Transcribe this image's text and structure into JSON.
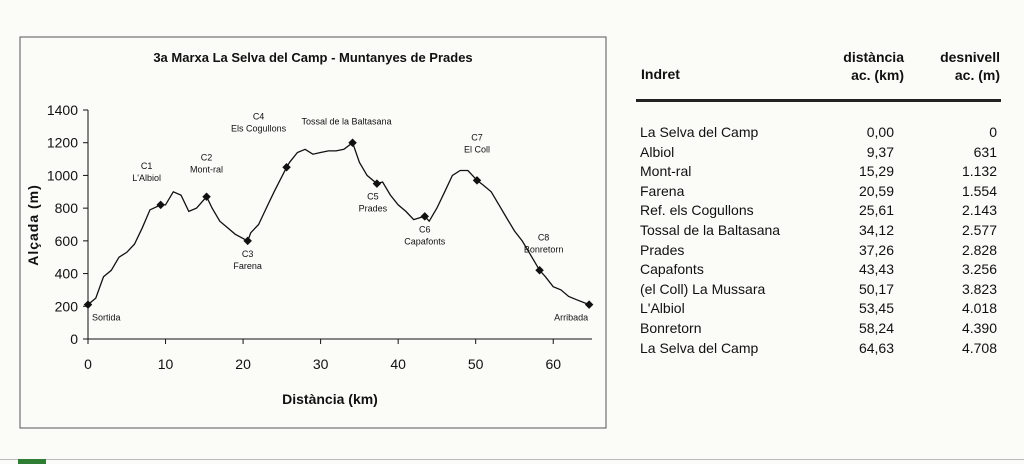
{
  "chart_data": {
    "type": "line",
    "title": "3a Marxa La Selva del Camp - Muntanyes de Prades",
    "xlabel": "Distància (km)",
    "ylabel": "Alçada (m)",
    "xlim": [
      0,
      65
    ],
    "ylim": [
      0,
      1400
    ],
    "xticks": [
      0,
      10,
      20,
      30,
      40,
      50,
      60
    ],
    "yticks": [
      0,
      200,
      400,
      600,
      800,
      1000,
      1200,
      1400
    ],
    "x": [
      0,
      1,
      2,
      3,
      4,
      5,
      6,
      7,
      8,
      9.37,
      10,
      11,
      12,
      13,
      14,
      15.29,
      16,
      17,
      18,
      19,
      20.59,
      21,
      22,
      23,
      24,
      25.61,
      26,
      27,
      28,
      29,
      30,
      31,
      32,
      33,
      34.12,
      35,
      36,
      37.26,
      38,
      39,
      40,
      41,
      42,
      43.43,
      44,
      45,
      46,
      47,
      48,
      49,
      50.17,
      51,
      52,
      53,
      54,
      55,
      56,
      57,
      58.24,
      59,
      60,
      61,
      62,
      63,
      64.63
    ],
    "series": [
      {
        "color": "#111111",
        "values": [
          210,
          250,
          380,
          420,
          500,
          530,
          580,
          680,
          790,
          820,
          820,
          900,
          880,
          780,
          800,
          870,
          800,
          720,
          680,
          640,
          600,
          650,
          700,
          800,
          900,
          1050,
          1080,
          1140,
          1160,
          1130,
          1140,
          1150,
          1150,
          1160,
          1200,
          1080,
          1000,
          950,
          960,
          880,
          820,
          780,
          730,
          750,
          720,
          800,
          900,
          1000,
          1030,
          1030,
          970,
          940,
          900,
          820,
          740,
          660,
          600,
          520,
          420,
          380,
          320,
          300,
          260,
          240,
          210
        ]
      }
    ],
    "checkpoints": [
      {
        "x": 0,
        "y": 210,
        "lines": [
          "Sortida"
        ]
      },
      {
        "x": 9.37,
        "y": 820,
        "lines": [
          "C1",
          "L'Albiol"
        ]
      },
      {
        "x": 15.29,
        "y": 870,
        "lines": [
          "C2",
          "Mont-ral"
        ]
      },
      {
        "x": 20.59,
        "y": 600,
        "lines": [
          "C3",
          "Farena"
        ]
      },
      {
        "x": 25.61,
        "y": 1050,
        "lines": [
          "C4",
          "Els Cogullons"
        ]
      },
      {
        "x": 34.12,
        "y": 1200,
        "lines": [
          "Tossal de la Baltasana"
        ]
      },
      {
        "x": 37.26,
        "y": 950,
        "lines": [
          "C5",
          "Prades"
        ]
      },
      {
        "x": 43.43,
        "y": 750,
        "lines": [
          "C6",
          "Capafonts"
        ]
      },
      {
        "x": 50.17,
        "y": 970,
        "lines": [
          "C7",
          "El Coll"
        ]
      },
      {
        "x": 58.24,
        "y": 420,
        "lines": [
          "C8",
          "Bonretorn"
        ]
      },
      {
        "x": 64.63,
        "y": 210,
        "lines": [
          "Arribada"
        ]
      }
    ]
  },
  "table": {
    "header": [
      "Indret",
      [
        "distància",
        "ac. (km)"
      ],
      [
        "desnivell",
        "ac. (m)"
      ]
    ],
    "rows": [
      [
        "La Selva del Camp",
        "0,00",
        "0"
      ],
      [
        "Albiol",
        "9,37",
        "631"
      ],
      [
        "Mont-ral",
        "15,29",
        "1.132"
      ],
      [
        "Farena",
        "20,59",
        "1.554"
      ],
      [
        "Ref. els Cogullons",
        "25,61",
        "2.143"
      ],
      [
        "Tossal de la Baltasana",
        "34,12",
        "2.577"
      ],
      [
        "Prades",
        "37,26",
        "2.828"
      ],
      [
        "Capafonts",
        "43,43",
        "3.256"
      ],
      [
        "(el Coll) La Mussara",
        "50,17",
        "3.823"
      ],
      [
        "L'Albiol",
        "53,45",
        "4.018"
      ],
      [
        "Bonretorn",
        "58,24",
        "4.390"
      ],
      [
        "La Selva del Camp",
        "64,63",
        "4.708"
      ]
    ]
  }
}
